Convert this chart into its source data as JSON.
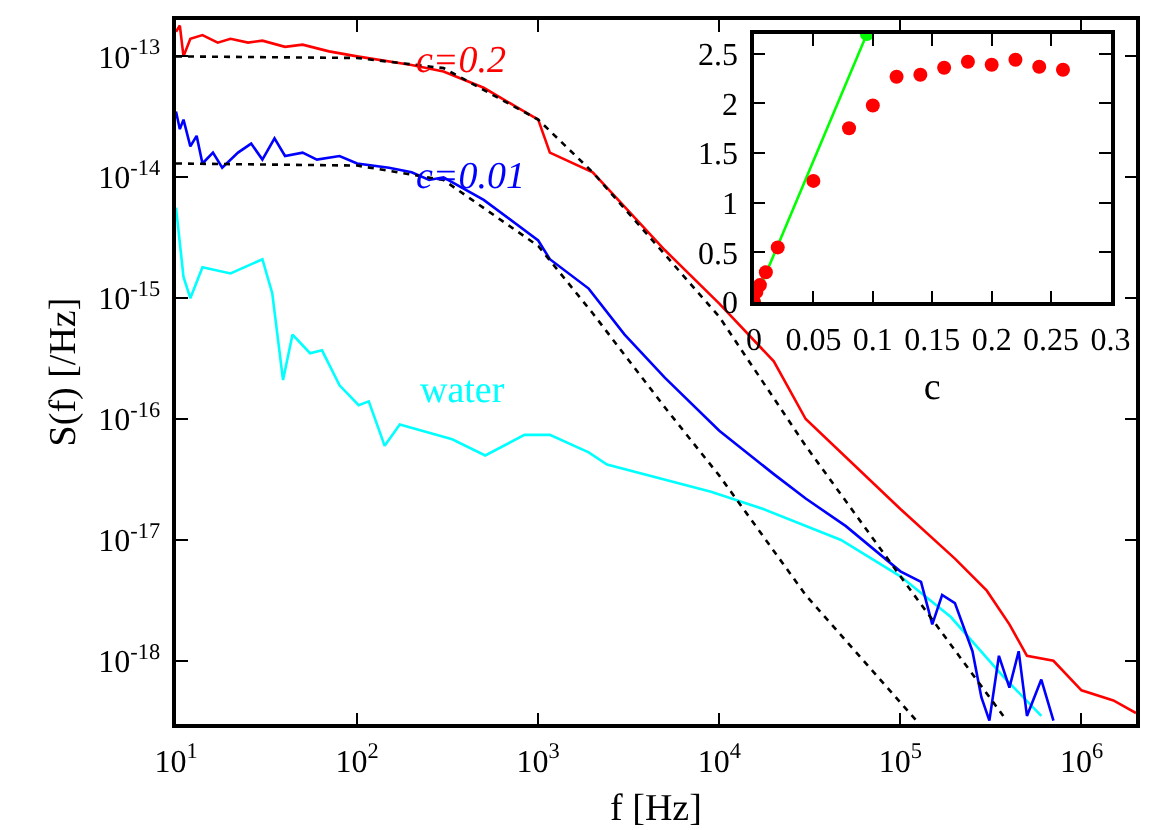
{
  "chart_data": [
    {
      "type": "line",
      "xlabel": "f [Hz]",
      "ylabel": "S(f) [/Hz]",
      "log": "xy",
      "xlim": [
        10,
        2000000
      ],
      "ylim": [
        3e-19,
        2e-13
      ],
      "xticks": [
        {
          "value": 10,
          "label": "10$^{1}$"
        },
        {
          "value": 100,
          "label": "10$^{2}$"
        },
        {
          "value": 1000,
          "label": "10$^{3}$"
        },
        {
          "value": 10000,
          "label": "10$^{4}$"
        },
        {
          "value": 100000,
          "label": "10$^{5}$"
        },
        {
          "value": 1000000,
          "label": "10$^{6}$"
        }
      ],
      "yticks": [
        {
          "value": 1e-18,
          "label": "10$^{-18}$"
        },
        {
          "value": 1e-17,
          "label": "10$^{-17}$"
        },
        {
          "value": 1e-16,
          "label": "10$^{-16}$"
        },
        {
          "value": 1e-15,
          "label": "10$^{-15}$"
        },
        {
          "value": 1e-14,
          "label": "10$^{-14}$"
        },
        {
          "value": 1e-13,
          "label": "10$^{-13}$"
        }
      ],
      "annotations": [
        "c=0.2",
        "c=0.01",
        "water"
      ],
      "series": [
        {
          "color": "#00ffff",
          "x": [
            10,
            11,
            12,
            14,
            20,
            30,
            34,
            39,
            44,
            55,
            64,
            80,
            102,
            116,
            142,
            172,
            335,
            510,
            840,
            1160,
            1900,
            2400,
            9000,
            17500,
            47000,
            100000,
            190000,
            370000,
            600000
          ],
          "values": [
            5.6e-15,
            1.5e-15,
            1e-15,
            1.8e-15,
            1.6e-15,
            2.1e-15,
            1.1e-15,
            2.1e-16,
            5e-16,
            3.5e-16,
            3.7e-16,
            1.9e-16,
            1.3e-16,
            1.4e-16,
            6e-17,
            9e-17,
            6.8e-17,
            5e-17,
            7.4e-17,
            7.4e-17,
            5.3e-17,
            4.2e-17,
            2.5e-17,
            1.8e-17,
            1e-17,
            5e-18,
            2.3e-18,
            7.4e-19,
            3.5e-19
          ]
        },
        {
          "color": "#0000ff",
          "x": [
            10,
            10.5,
            11,
            12,
            13,
            14,
            16,
            18,
            22,
            26,
            30,
            35,
            40,
            50,
            60,
            80,
            100,
            150,
            200,
            250,
            300,
            500,
            1000,
            1160,
            1900,
            3000,
            5000,
            10000,
            20000,
            30000,
            50000,
            100000,
            130000,
            150000,
            170000,
            200000,
            250000,
            280000,
            310000,
            350000,
            400000,
            450000,
            500000,
            600000,
            700000
          ],
          "values": [
            3.5e-14,
            2.5e-14,
            3e-14,
            1.8e-14,
            2.2e-14,
            1.3e-14,
            1.6e-14,
            1.2e-14,
            1.6e-14,
            1.9e-14,
            1.4e-14,
            2.1e-14,
            1.5e-14,
            1.6e-14,
            1.4e-14,
            1.5e-14,
            1.3e-14,
            1.2e-14,
            1.1e-14,
            9.5e-15,
            1e-14,
            6.5e-15,
            3e-15,
            2.1e-15,
            1.2e-15,
            5e-16,
            2.2e-16,
            8e-17,
            3.5e-17,
            2.2e-17,
            1.3e-17,
            5.5e-18,
            4.5e-18,
            2e-18,
            3.5e-18,
            3e-18,
            1.2e-18,
            5e-19,
            3.2e-19,
            1.1e-18,
            6e-19,
            1.2e-18,
            3.5e-19,
            7e-19,
            3.2e-19
          ]
        },
        {
          "color": "#ff0000",
          "x": [
            10,
            10.5,
            11,
            12,
            14,
            17,
            20,
            25,
            30,
            40,
            50,
            70,
            100,
            200,
            300,
            500,
            1000,
            1160,
            2000,
            5000,
            10000,
            20000,
            30000,
            100000,
            200000,
            300000,
            400000,
            500000,
            700000,
            1000000,
            1500000,
            2000000
          ],
          "values": [
            1.6e-13,
            1.8e-13,
            1e-13,
            1.4e-13,
            1.5e-13,
            1.3e-13,
            1.4e-13,
            1.3e-13,
            1.35e-13,
            1.2e-13,
            1.25e-13,
            1.1e-13,
            1e-13,
            8.5e-14,
            7.5e-14,
            5.5e-14,
            3e-14,
            1.6e-14,
            1.1e-14,
            2.5e-15,
            9e-16,
            3e-16,
            1e-16,
            1.8e-17,
            7e-18,
            3.8e-18,
            2e-18,
            1.1e-18,
            1e-18,
            5.7e-19,
            4.7e-19,
            3.7e-19
          ]
        },
        {
          "color": "#000000",
          "line_style": "dotted",
          "x": [
            10,
            100,
            300,
            1000,
            2000,
            5000,
            10000,
            30000,
            100000,
            370000
          ],
          "values": [
            1e-13,
            9.7e-14,
            8e-14,
            3e-14,
            1.1e-14,
            2.3e-15,
            7e-16,
            6e-17,
            5e-18,
            3.5e-19
          ]
        },
        {
          "color": "#000000",
          "line_style": "dotted",
          "x": [
            10,
            100,
            300,
            1000,
            2000,
            5000,
            10000,
            30000,
            125000
          ],
          "values": [
            1.3e-14,
            1.25e-14,
            9.5e-15,
            2.7e-15,
            7.5e-16,
            1.25e-16,
            3.4e-17,
            3.5e-18,
            3.1e-19
          ]
        }
      ]
    },
    {
      "type": "scatter",
      "xlabel": "c",
      "marker": "circle",
      "xlim": [
        0,
        0.3
      ],
      "ylim": [
        0,
        2.7
      ],
      "xticks": [
        0,
        0.05,
        0.1,
        0.15,
        0.2,
        0.25,
        0.3
      ],
      "yticks": [
        0,
        0.5,
        1,
        1.5,
        2,
        2.5
      ],
      "series": [
        {
          "type": "line",
          "color": "#00ff00",
          "x": [
            0,
            0.095
          ],
          "values": [
            0,
            2.7
          ]
        },
        {
          "color": "#ff0000",
          "x": [
            0,
            0.002,
            0.005,
            0.01,
            0.02,
            0.05,
            0.08,
            0.1,
            0.12,
            0.14,
            0.16,
            0.18,
            0.2,
            0.22,
            0.24,
            0.26
          ],
          "values": [
            0,
            0.1,
            0.17,
            0.3,
            0.55,
            1.22,
            1.75,
            1.98,
            2.27,
            2.29,
            2.36,
            2.42,
            2.39,
            2.44,
            2.37,
            2.34
          ]
        }
      ]
    }
  ]
}
